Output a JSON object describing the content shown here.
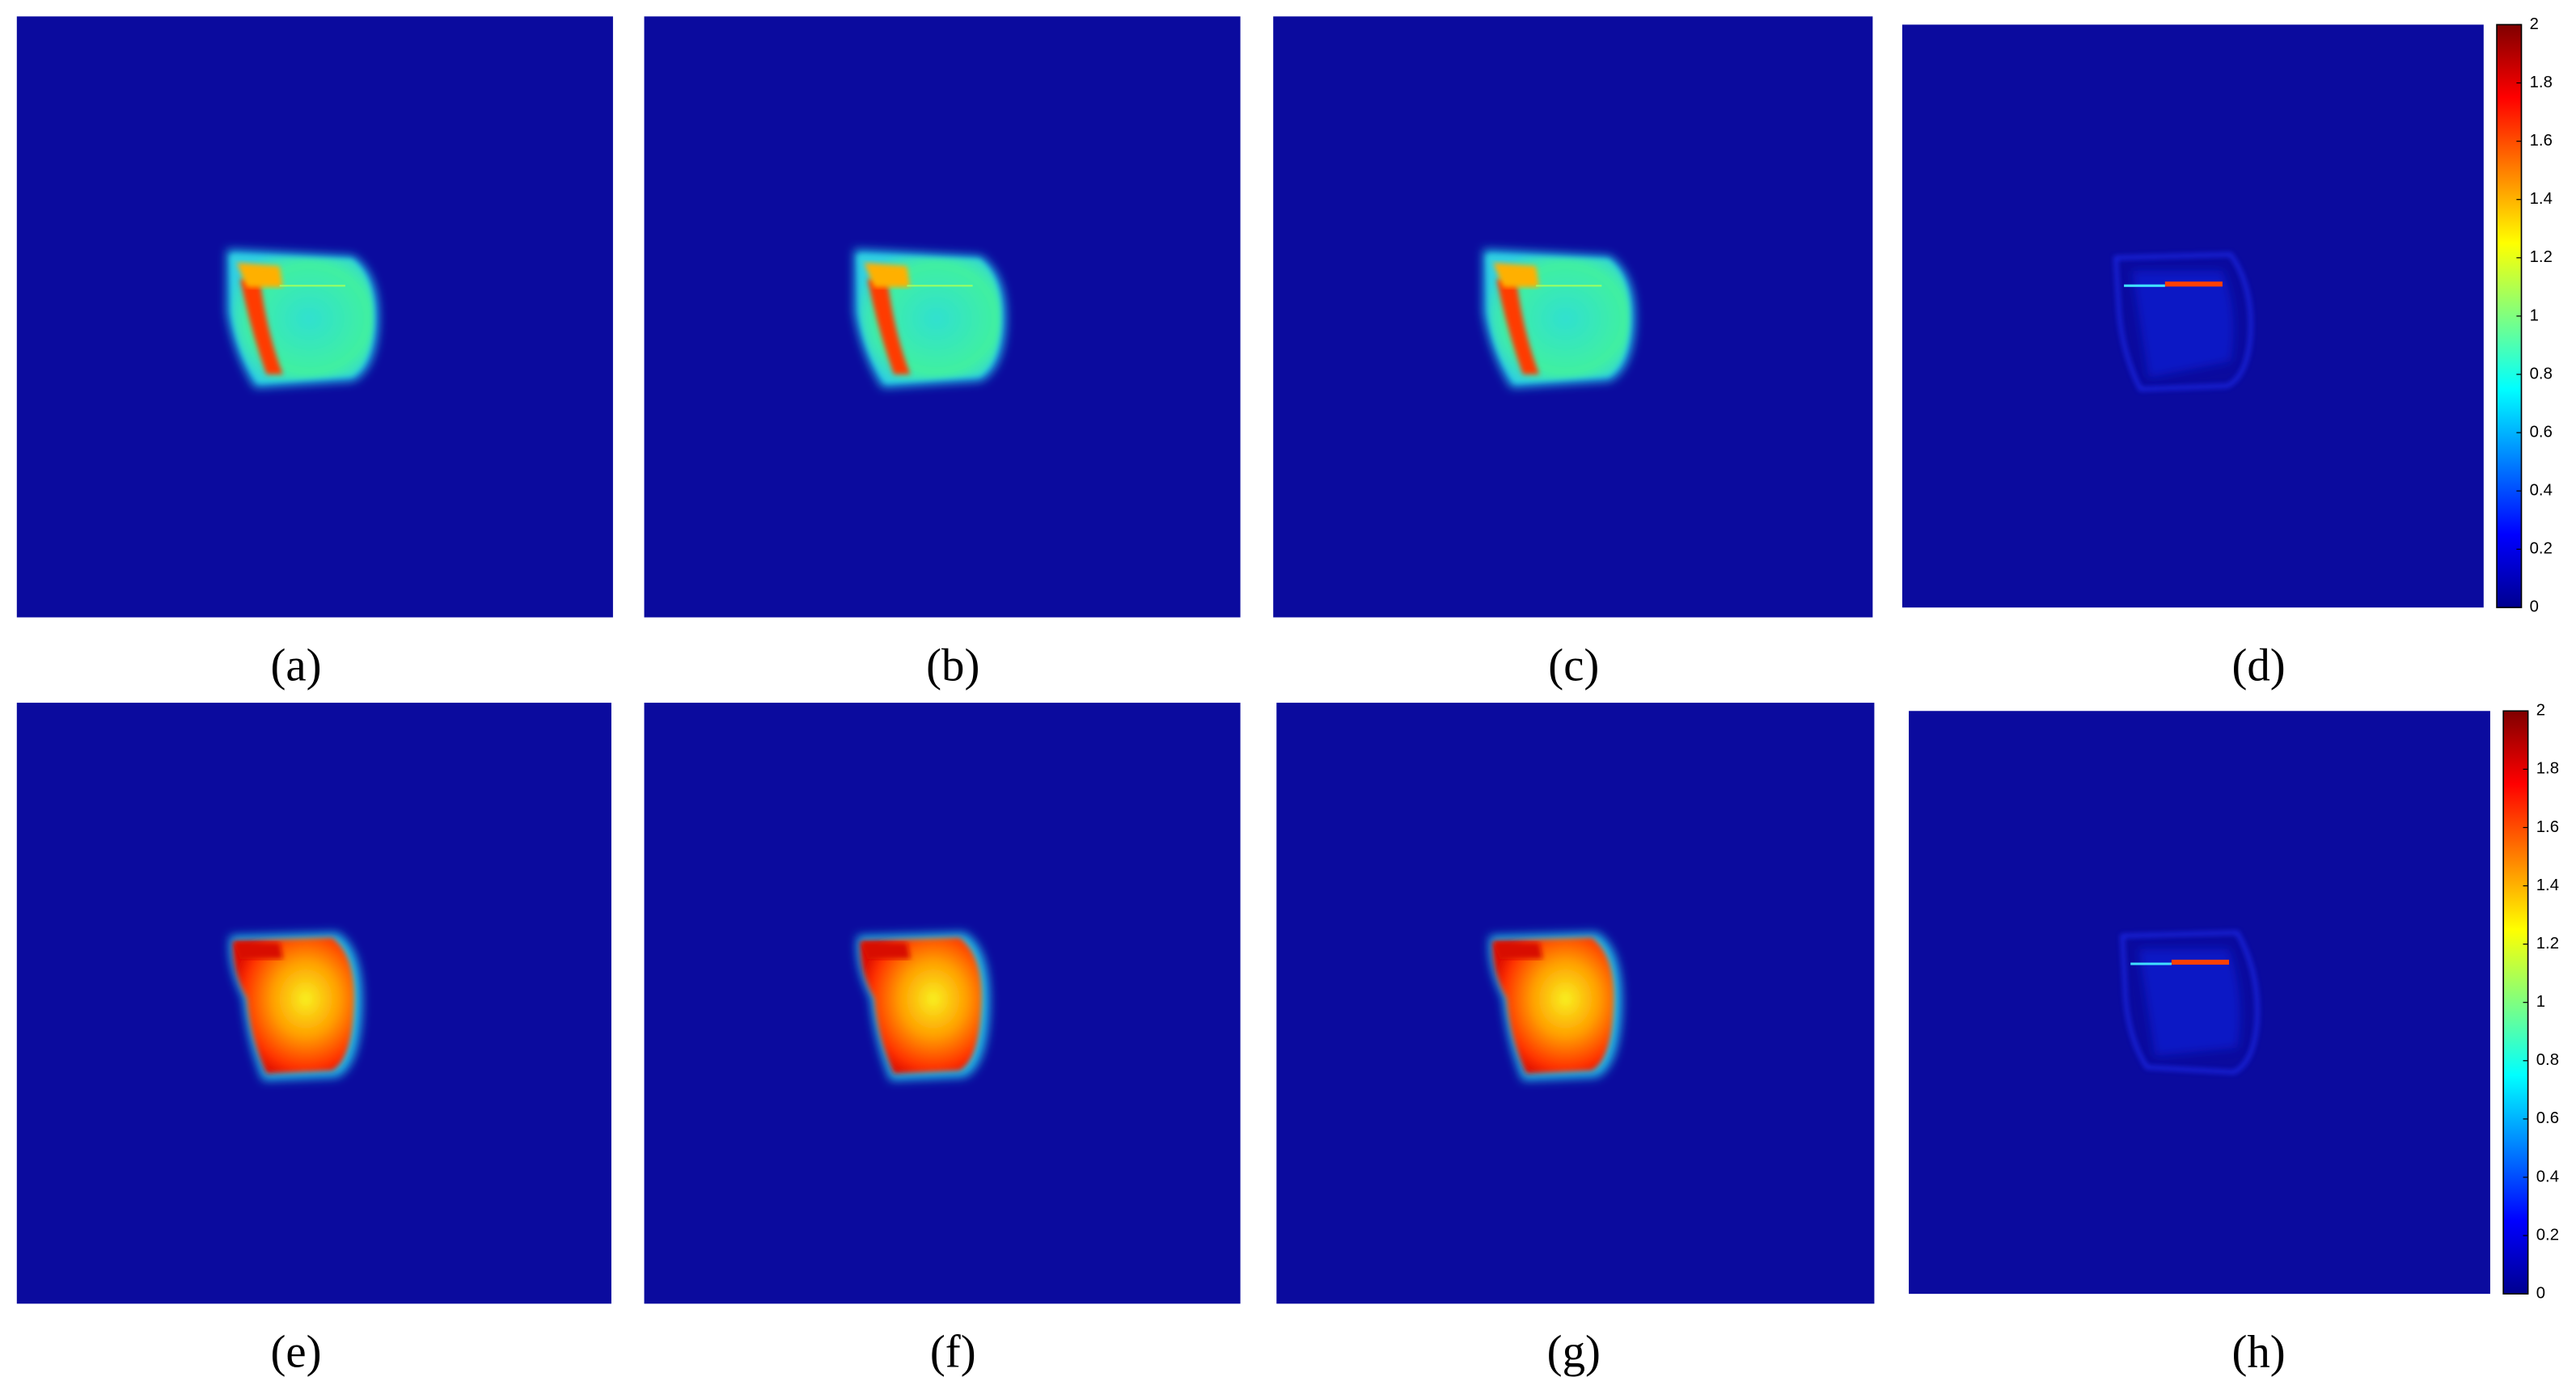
{
  "panels": [
    {
      "label": "(a)"
    },
    {
      "label": "(b)"
    },
    {
      "label": "(c)"
    },
    {
      "label": "(d)"
    },
    {
      "label": "(e)"
    },
    {
      "label": "(f)"
    },
    {
      "label": "(g)"
    },
    {
      "label": "(h)"
    }
  ],
  "colorbars": [
    {
      "lim": [
        0,
        2
      ],
      "ticks": [
        0,
        0.2,
        0.4,
        0.6,
        0.8,
        1,
        1.2,
        1.4,
        1.6,
        1.8,
        2
      ]
    },
    {
      "lim": [
        0,
        2
      ],
      "ticks": [
        0,
        0.2,
        0.4,
        0.6,
        0.8,
        1,
        1.2,
        1.4,
        1.6,
        1.8,
        2
      ]
    }
  ]
}
